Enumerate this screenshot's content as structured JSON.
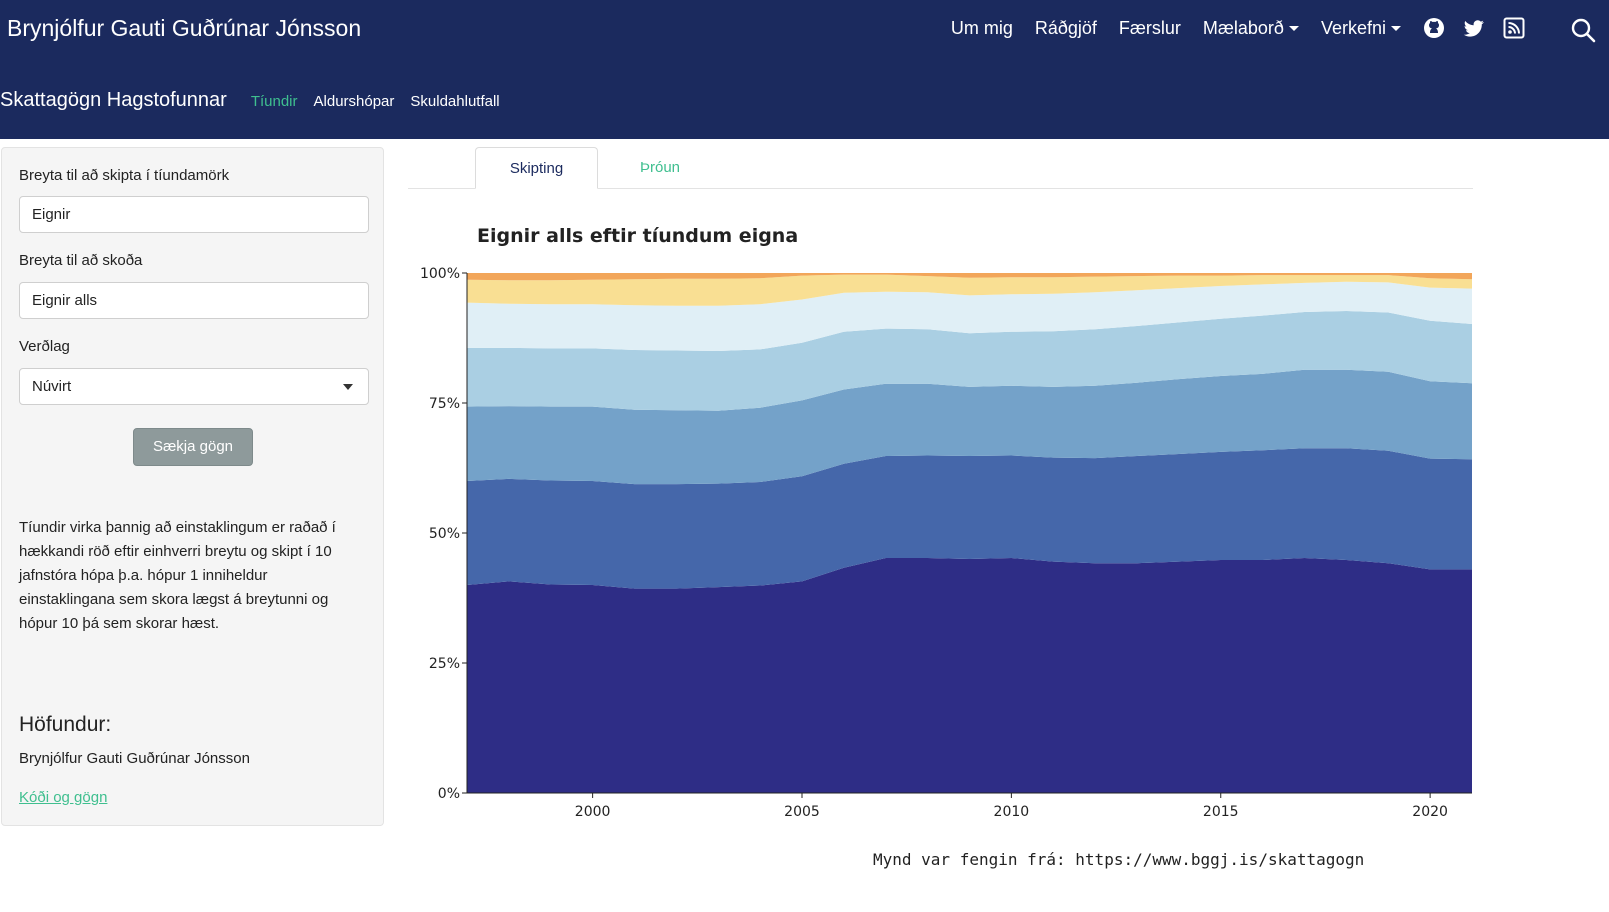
{
  "header": {
    "brand": "Brynjólfur Gauti Guðrúnar Jónsson",
    "menu": [
      {
        "label": "Um mig",
        "dropdown": false
      },
      {
        "label": "Ráðgjöf",
        "dropdown": false
      },
      {
        "label": "Færslur",
        "dropdown": false
      },
      {
        "label": "Mælaborð",
        "dropdown": true
      },
      {
        "label": "Verkefni",
        "dropdown": true
      }
    ],
    "icons": [
      "github-icon",
      "twitter-icon",
      "rss-icon",
      "search-icon"
    ]
  },
  "subnav": {
    "title": "Skattagögn Hagstofunnar",
    "tabs": [
      "Tíundir",
      "Aldurshópar",
      "Skuldahlutfall"
    ],
    "active_tab": "Tíundir"
  },
  "sidebar": {
    "decile_var_label": "Breyta til að skipta í tíundamörk",
    "decile_var_value": "Eignir",
    "view_var_label": "Breyta til að skoða",
    "view_var_value": "Eignir alls",
    "price_label": "Verðlag",
    "price_value": "Núvirt",
    "fetch_button": "Sækja gögn",
    "description": "Tíundir virka þannig að einstaklingum er raðað í hækkandi röð eftir einhverri breytu og skipt í 10 jafnstóra hópa þ.a. hópur 1 inniheldur einstaklingana sem skora lægst á breytunni og hópur 10 þá sem skorar hæst.",
    "author_heading": "Höfundur:",
    "author_name": "Brynjólfur Gauti Guðrúnar Jónsson",
    "code_link": "Kóði og gögn"
  },
  "main": {
    "tabs": [
      "Skipting",
      "Þróun"
    ],
    "active_tab": "Skipting"
  },
  "caption": "Mynd var fengin frá: https://www.bggj.is/skattagogn",
  "colors": {
    "navbar": "#1b2a5e",
    "accent": "#3fbf8f",
    "series": [
      "#2e2d86",
      "#4567aa",
      "#74a2c9",
      "#aacfe3",
      "#e0eff6",
      "#f9df93",
      "#f2a65a"
    ]
  },
  "chart_data": {
    "type": "area",
    "stacked": "percent",
    "title": "Eignir alls eftir tíundum eigna",
    "xlabel": "",
    "ylabel": "",
    "xlim": [
      1997,
      2021
    ],
    "ylim": [
      0,
      1
    ],
    "x_ticks": [
      2000,
      2005,
      2010,
      2015,
      2020
    ],
    "y_ticks": [
      "0%",
      "25%",
      "50%",
      "75%",
      "100%"
    ],
    "x": [
      1997,
      1998,
      1999,
      2000,
      2001,
      2002,
      2003,
      2004,
      2005,
      2006,
      2007,
      2008,
      2009,
      2010,
      2011,
      2012,
      2013,
      2014,
      2015,
      2016,
      2017,
      2018,
      2019,
      2020,
      2021
    ],
    "cumulative_upper_bounds": [
      [
        0.4,
        0.407,
        0.401,
        0.4,
        0.393,
        0.393,
        0.396,
        0.399,
        0.407,
        0.433,
        0.452,
        0.452,
        0.45,
        0.452,
        0.445,
        0.442,
        0.442,
        0.445,
        0.448,
        0.448,
        0.452,
        0.448,
        0.442,
        0.43,
        0.43
      ],
      [
        0.6,
        0.604,
        0.601,
        0.6,
        0.594,
        0.594,
        0.595,
        0.598,
        0.609,
        0.633,
        0.648,
        0.649,
        0.648,
        0.649,
        0.645,
        0.644,
        0.648,
        0.652,
        0.656,
        0.659,
        0.663,
        0.663,
        0.658,
        0.643,
        0.642
      ],
      [
        0.743,
        0.744,
        0.743,
        0.743,
        0.737,
        0.736,
        0.735,
        0.741,
        0.755,
        0.776,
        0.787,
        0.787,
        0.781,
        0.783,
        0.781,
        0.783,
        0.789,
        0.796,
        0.802,
        0.806,
        0.814,
        0.814,
        0.81,
        0.792,
        0.788
      ],
      [
        0.856,
        0.856,
        0.855,
        0.855,
        0.852,
        0.851,
        0.85,
        0.853,
        0.866,
        0.887,
        0.893,
        0.892,
        0.884,
        0.887,
        0.888,
        0.892,
        0.898,
        0.905,
        0.912,
        0.918,
        0.925,
        0.927,
        0.924,
        0.908,
        0.902
      ],
      [
        0.943,
        0.941,
        0.94,
        0.94,
        0.938,
        0.937,
        0.937,
        0.94,
        0.949,
        0.962,
        0.964,
        0.963,
        0.957,
        0.959,
        0.96,
        0.963,
        0.967,
        0.971,
        0.975,
        0.978,
        0.981,
        0.983,
        0.982,
        0.972,
        0.97
      ],
      [
        0.987,
        0.986,
        0.986,
        0.987,
        0.988,
        0.989,
        0.989,
        0.99,
        0.995,
        0.997,
        0.997,
        0.994,
        0.991,
        0.992,
        0.992,
        0.993,
        0.994,
        0.995,
        0.995,
        0.996,
        0.996,
        0.996,
        0.996,
        0.99,
        0.988
      ],
      [
        1,
        1,
        1,
        1,
        1,
        1,
        1,
        1,
        1,
        1,
        1,
        1,
        1,
        1,
        1,
        1,
        1,
        1,
        1,
        1,
        1,
        1,
        1,
        1,
        1
      ]
    ]
  }
}
